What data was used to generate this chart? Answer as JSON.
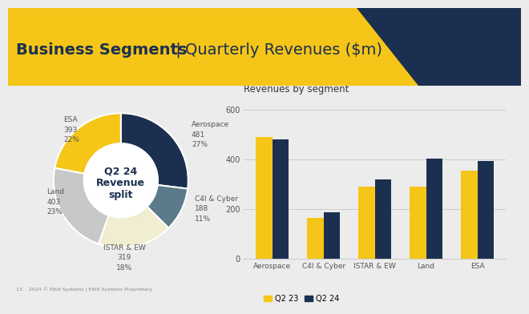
{
  "title_bold": "Business Segments",
  "title_separator": " | ",
  "title_regular": "Quarterly Revenues ($m)",
  "title_bg_color": "#F5C518",
  "bg_color": "#ECECEC",
  "header_dark_color": "#1B3050",
  "donut_segments": [
    "Aerospace",
    "C4I & Cyber",
    "ISTAR & EW",
    "Land",
    "ESA"
  ],
  "donut_values": [
    481,
    188,
    319,
    403,
    393
  ],
  "donut_pcts": [
    "27%",
    "11%",
    "18%",
    "23%",
    "22%"
  ],
  "donut_colors": [
    "#1B3050",
    "#5B7A8A",
    "#F0EDD0",
    "#C8C8C8",
    "#F5C518"
  ],
  "donut_center_text1": "Q2 24",
  "donut_center_text2": "Revenue",
  "donut_center_text3": "split",
  "bar_categories": [
    "Aerospace",
    "C4I & Cyber",
    "ISTAR & EW",
    "Land",
    "ESA"
  ],
  "bar_q2_23": [
    490,
    165,
    290,
    290,
    355
  ],
  "bar_q2_24": [
    481,
    188,
    319,
    403,
    393
  ],
  "bar_color_q2_23": "#F5C518",
  "bar_color_q2_24": "#1B3050",
  "bar_chart_title": "Revenues by segment",
  "bar_ylim": [
    0,
    650
  ],
  "bar_yticks": [
    0,
    200,
    400,
    600
  ],
  "legend_q2_23": "Q2 23",
  "legend_q2_24": "Q2 24",
  "footer_text": "13    2024 © Elbit Systems | Elbit Systems Proprietary"
}
